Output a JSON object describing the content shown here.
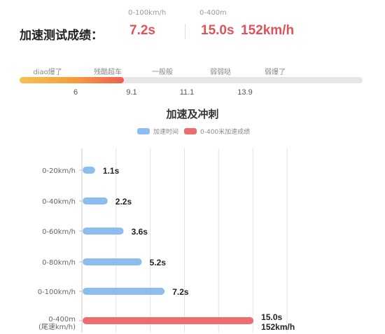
{
  "header": {
    "title": "加速测试成绩：",
    "accel_caption": "0-100km/h",
    "accel_value": "7.2s",
    "quarter_caption": "0-400m",
    "quarter_time": "15.0s",
    "quarter_speed": "152km/h"
  },
  "rating": {
    "tiers": [
      "diao爆了",
      "残酷超车",
      "一般般",
      "弱弱哒",
      "弱爆了"
    ],
    "active_tier": "残酷超车",
    "scale_ticks": [
      "6",
      "9.1",
      "11.1",
      "13.9"
    ],
    "value": 7.2,
    "scale_min": 1.6,
    "scale_max": 20
  },
  "colors": {
    "accel_bar": "#8dbdee",
    "quarter_bar": "#ee6b6e",
    "accent": "#e0525a"
  },
  "chart_data": {
    "type": "bar",
    "orientation": "horizontal",
    "title": "加速及冲刺",
    "legend": [
      "加速时间",
      "0-400米加速成绩"
    ],
    "legend_placement": "top-center",
    "grid": true,
    "xlim": [
      0,
      18
    ],
    "categories": [
      "0-20km/h",
      "0-40km/h",
      "0-60km/h",
      "0-80km/h",
      "0-100km/h",
      "0-400m"
    ],
    "category_sublabels": [
      "",
      "",
      "",
      "",
      "",
      "(尾速km/h)"
    ],
    "values": [
      1.1,
      2.2,
      3.6,
      5.2,
      7.2,
      15.0
    ],
    "value_labels": [
      "1.1s",
      "2.2s",
      "3.6s",
      "5.2s",
      "7.2s",
      "15.0s"
    ],
    "value_sublabels": [
      "",
      "",
      "",
      "",
      "",
      "152km/h"
    ],
    "series_index": [
      0,
      0,
      0,
      0,
      0,
      1
    ]
  }
}
